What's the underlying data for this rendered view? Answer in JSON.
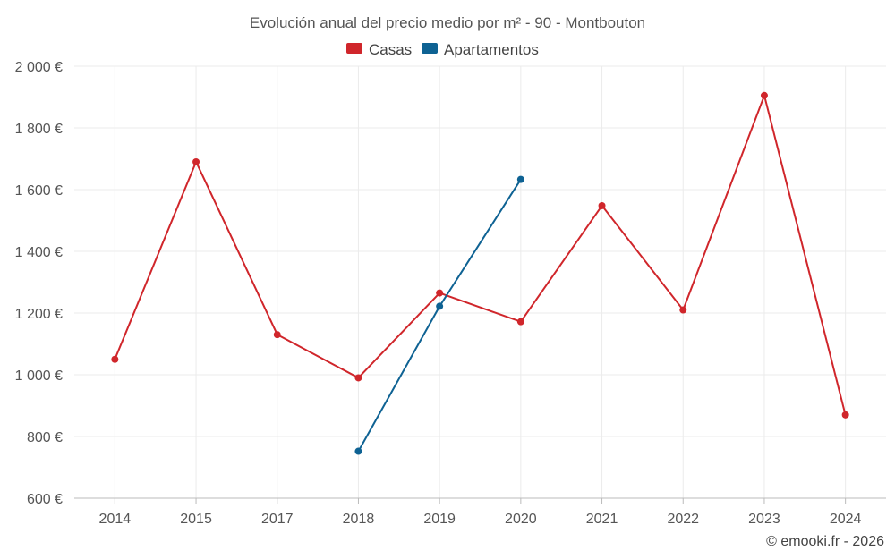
{
  "chart_data": {
    "type": "line",
    "title": "Evolución anual del precio medio por m² - 90 - Montbouton",
    "categories": [
      "2014",
      "2015",
      "2017",
      "2018",
      "2019",
      "2020",
      "2021",
      "2022",
      "2023",
      "2024"
    ],
    "y_ticks": [
      "600 €",
      "800 €",
      "1 000 €",
      "1 200 €",
      "1 400 €",
      "1 600 €",
      "1 800 €",
      "2 000 €"
    ],
    "ylim": [
      600,
      2000
    ],
    "grid": true,
    "legend_position": "top-center",
    "series": [
      {
        "name": "Casas",
        "color": "#d0262b",
        "values": [
          1050,
          1690,
          1130,
          990,
          1265,
          1172,
          1548,
          1210,
          1905,
          870
        ]
      },
      {
        "name": "Apartamentos",
        "color": "#0e6293",
        "values": [
          null,
          null,
          null,
          752,
          1222,
          1633,
          null,
          null,
          null,
          null
        ]
      }
    ]
  },
  "credit": "© emooki.fr - 2026"
}
